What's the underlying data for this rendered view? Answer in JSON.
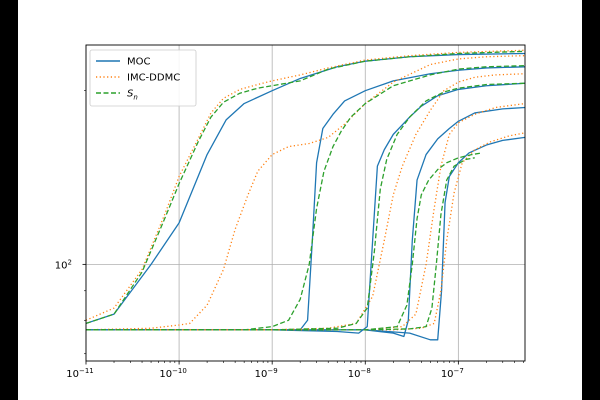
{
  "chart_data": {
    "type": "line",
    "xscale": "log",
    "yscale": "log",
    "xlim": [
      1e-11,
      5.2e-07
    ],
    "ylim": [
      68,
      240
    ],
    "grid": true,
    "legend_location": "upper-left",
    "x_ticks": [
      {
        "value": 1e-11,
        "label": "10",
        "exp": "−11"
      },
      {
        "value": 1e-10,
        "label": "10",
        "exp": "−10"
      },
      {
        "value": 1e-09,
        "label": "10",
        "exp": "−9"
      },
      {
        "value": 1e-08,
        "label": "10",
        "exp": "−8"
      },
      {
        "value": 1e-07,
        "label": "10",
        "exp": "−7"
      }
    ],
    "y_ticks": [
      {
        "value": 100,
        "label": "10",
        "exp": "2"
      }
    ],
    "legend": [
      {
        "key": "moc",
        "label": "MOC",
        "color": "#1f77b4",
        "dash": ""
      },
      {
        "key": "imc",
        "label": "IMC-DDMC",
        "color": "#ff7f0e",
        "dash": "1.2,2.5"
      },
      {
        "key": "sn",
        "label": "S",
        "sub": "n",
        "color": "#2ca02c",
        "dash": "5,2.5"
      }
    ],
    "series": [
      {
        "name": "MOC",
        "style": "moc",
        "points": [
          [
            1e-11,
            79
          ],
          [
            2e-11,
            82
          ],
          [
            5e-11,
            100
          ],
          [
            1e-10,
            118
          ],
          [
            2e-10,
            155
          ],
          [
            3.2e-10,
            178
          ],
          [
            5e-10,
            190
          ],
          [
            1e-09,
            200
          ],
          [
            2e-09,
            210
          ],
          [
            5e-09,
            220
          ],
          [
            1e-08,
            225
          ],
          [
            3e-08,
            229
          ],
          [
            1e-07,
            231
          ],
          [
            5.2e-07,
            232
          ]
        ]
      },
      {
        "name": "MOC",
        "style": "moc",
        "points": [
          [
            1e-11,
            77
          ],
          [
            1e-10,
            77
          ],
          [
            1e-09,
            77
          ],
          [
            2e-09,
            77
          ],
          [
            2.4e-09,
            80
          ],
          [
            2.7e-09,
            110
          ],
          [
            3e-09,
            150
          ],
          [
            3.5e-09,
            172
          ],
          [
            4.5e-09,
            182
          ],
          [
            6e-09,
            192
          ],
          [
            1e-08,
            200
          ],
          [
            2e-08,
            208
          ],
          [
            5e-08,
            214
          ],
          [
            1e-07,
            217
          ],
          [
            2e-07,
            219
          ],
          [
            5.2e-07,
            220
          ]
        ]
      },
      {
        "name": "MOC",
        "style": "moc",
        "points": [
          [
            1e-11,
            77
          ],
          [
            1e-09,
            77
          ],
          [
            5e-09,
            76.5
          ],
          [
            8.5e-09,
            76
          ],
          [
            1.05e-08,
            78
          ],
          [
            1.2e-08,
            110
          ],
          [
            1.35e-08,
            148
          ],
          [
            1.6e-08,
            158
          ],
          [
            2e-08,
            168
          ],
          [
            3e-08,
            180
          ],
          [
            4e-08,
            188
          ],
          [
            6e-08,
            196
          ],
          [
            1e-07,
            201
          ],
          [
            2e-07,
            204
          ],
          [
            5.2e-07,
            206
          ]
        ]
      },
      {
        "name": "MOC",
        "style": "moc",
        "points": [
          [
            1e-11,
            77
          ],
          [
            1e-09,
            77
          ],
          [
            1e-08,
            77
          ],
          [
            2e-08,
            76
          ],
          [
            2.6e-08,
            75
          ],
          [
            2.9e-08,
            80
          ],
          [
            3.2e-08,
            110
          ],
          [
            3.6e-08,
            140
          ],
          [
            4.5e-08,
            155
          ],
          [
            6e-08,
            165
          ],
          [
            8e-08,
            172
          ],
          [
            1e-07,
            177
          ],
          [
            1.5e-07,
            183
          ],
          [
            3e-07,
            186
          ],
          [
            5.2e-07,
            187
          ]
        ]
      },
      {
        "name": "MOC",
        "style": "moc",
        "points": [
          [
            1e-11,
            77
          ],
          [
            1e-09,
            77
          ],
          [
            1e-08,
            77
          ],
          [
            3e-08,
            76
          ],
          [
            5e-08,
            74
          ],
          [
            6e-08,
            74
          ],
          [
            6.6e-08,
            90
          ],
          [
            7.2e-08,
            128
          ],
          [
            8e-08,
            142
          ],
          [
            1e-07,
            150
          ],
          [
            1.3e-07,
            156
          ],
          [
            2e-07,
            161
          ],
          [
            3e-07,
            164
          ],
          [
            5.2e-07,
            166
          ]
        ]
      },
      {
        "name": "IMC-DDMC",
        "style": "imc",
        "points": [
          [
            1e-11,
            80
          ],
          [
            2e-11,
            84
          ],
          [
            4e-11,
            98
          ],
          [
            7e-11,
            122
          ],
          [
            1e-10,
            142
          ],
          [
            1.6e-10,
            165
          ],
          [
            2.2e-10,
            183
          ],
          [
            3e-10,
            194
          ],
          [
            4.5e-10,
            201
          ],
          [
            7e-10,
            205
          ],
          [
            1e-09,
            208
          ],
          [
            2e-09,
            213
          ],
          [
            4e-09,
            219
          ],
          [
            1e-08,
            226
          ],
          [
            3e-08,
            230
          ],
          [
            1e-07,
            233
          ],
          [
            5.2e-07,
            235
          ]
        ]
      },
      {
        "name": "IMC-DDMC",
        "style": "imc",
        "points": [
          [
            1e-11,
            77
          ],
          [
            5e-11,
            77.5
          ],
          [
            1e-10,
            78.5
          ],
          [
            1.3e-10,
            79
          ],
          [
            2e-10,
            85
          ],
          [
            3e-10,
            98
          ],
          [
            4e-10,
            115
          ],
          [
            5.5e-10,
            132
          ],
          [
            7e-10,
            145
          ],
          [
            1e-09,
            155
          ],
          [
            1.5e-09,
            160
          ],
          [
            2.5e-09,
            162
          ],
          [
            4e-09,
            166
          ],
          [
            6e-09,
            175
          ],
          [
            1e-08,
            190
          ],
          [
            2e-08,
            207
          ],
          [
            5e-08,
            222
          ],
          [
            1e-07,
            227
          ],
          [
            2e-07,
            229
          ],
          [
            5.2e-07,
            230
          ]
        ]
      },
      {
        "name": "IMC-DDMC",
        "style": "imc",
        "points": [
          [
            1e-11,
            77
          ],
          [
            1e-09,
            77
          ],
          [
            4e-09,
            77.5
          ],
          [
            8e-09,
            79
          ],
          [
            1.2e-08,
            88
          ],
          [
            1.6e-08,
            110
          ],
          [
            2e-08,
            132
          ],
          [
            2.5e-08,
            148
          ],
          [
            3.5e-08,
            168
          ],
          [
            5e-08,
            185
          ],
          [
            7e-08,
            200
          ],
          [
            1e-07,
            207
          ],
          [
            1.5e-07,
            211
          ],
          [
            2.5e-07,
            213
          ],
          [
            5.2e-07,
            214
          ]
        ]
      },
      {
        "name": "IMC-DDMC",
        "style": "imc",
        "points": [
          [
            1e-11,
            77
          ],
          [
            1e-08,
            77
          ],
          [
            2.5e-08,
            78
          ],
          [
            3.5e-08,
            82
          ],
          [
            4.5e-08,
            100
          ],
          [
            5.5e-08,
            125
          ],
          [
            6.5e-08,
            148
          ],
          [
            8e-08,
            168
          ],
          [
            1e-07,
            176
          ],
          [
            1.5e-07,
            182
          ],
          [
            2.5e-07,
            187
          ],
          [
            5.2e-07,
            190
          ]
        ]
      },
      {
        "name": "IMC-DDMC",
        "style": "imc",
        "points": [
          [
            1e-11,
            77
          ],
          [
            2e-08,
            77
          ],
          [
            4e-08,
            77.5
          ],
          [
            5.5e-08,
            79
          ],
          [
            6.5e-08,
            90
          ],
          [
            7.5e-08,
            110
          ],
          [
            9e-08,
            133
          ],
          [
            1.1e-07,
            150
          ],
          [
            1.5e-07,
            158
          ],
          [
            2.2e-07,
            163
          ],
          [
            3.5e-07,
            167
          ],
          [
            5.2e-07,
            169
          ]
        ]
      },
      {
        "name": "Sn",
        "style": "sn",
        "points": [
          [
            1e-11,
            79
          ],
          [
            2e-11,
            82
          ],
          [
            4e-11,
            97
          ],
          [
            7e-11,
            120
          ],
          [
            1e-10,
            138
          ],
          [
            1.6e-10,
            163
          ],
          [
            2.2e-10,
            180
          ],
          [
            3e-10,
            191
          ],
          [
            4.5e-10,
            198
          ],
          [
            7e-10,
            202
          ],
          [
            1e-09,
            204
          ],
          [
            2e-09,
            208
          ],
          [
            4e-09,
            218
          ],
          [
            1e-08,
            225
          ],
          [
            3e-08,
            229
          ],
          [
            1e-07,
            232
          ],
          [
            5.2e-07,
            234
          ]
        ]
      },
      {
        "name": "Sn",
        "style": "sn",
        "points": [
          [
            1e-11,
            77
          ],
          [
            5e-10,
            77
          ],
          [
            1e-09,
            78
          ],
          [
            1.5e-09,
            80
          ],
          [
            2e-09,
            87
          ],
          [
            2.5e-09,
            100
          ],
          [
            3e-09,
            125
          ],
          [
            3.6e-09,
            145
          ],
          [
            4.5e-09,
            160
          ],
          [
            5.5e-09,
            170
          ],
          [
            7e-09,
            180
          ],
          [
            1e-08,
            190
          ],
          [
            2e-08,
            204
          ],
          [
            5e-08,
            213
          ],
          [
            1e-07,
            218
          ],
          [
            2e-07,
            220
          ],
          [
            5.2e-07,
            221
          ]
        ]
      },
      {
        "name": "Sn",
        "style": "sn",
        "points": [
          [
            1e-11,
            77
          ],
          [
            1e-09,
            77
          ],
          [
            5e-09,
            77.5
          ],
          [
            8e-09,
            79
          ],
          [
            1.05e-08,
            84
          ],
          [
            1.25e-08,
            105
          ],
          [
            1.45e-08,
            135
          ],
          [
            1.7e-08,
            152
          ],
          [
            2.2e-08,
            168
          ],
          [
            3e-08,
            180
          ],
          [
            4.5e-08,
            192
          ],
          [
            7e-08,
            199
          ],
          [
            1e-07,
            202
          ],
          [
            2e-07,
            205
          ],
          [
            5.2e-07,
            206
          ]
        ]
      },
      {
        "name": "Sn",
        "style": "sn",
        "points": [
          [
            1e-11,
            77
          ],
          [
            1e-08,
            77
          ],
          [
            2.2e-08,
            78
          ],
          [
            2.8e-08,
            85
          ],
          [
            3.2e-08,
            100
          ],
          [
            3.6e-08,
            120
          ],
          [
            4e-08,
            132
          ],
          [
            4.8e-08,
            140
          ],
          [
            6e-08,
            146
          ],
          [
            7.5e-08,
            150
          ],
          [
            1e-07,
            153
          ],
          [
            1.4e-07,
            155
          ],
          [
            1.8e-07,
            156
          ]
        ]
      },
      {
        "name": "Sn",
        "style": "sn",
        "points": [
          [
            1e-11,
            77
          ],
          [
            1e-08,
            77
          ],
          [
            3e-08,
            77.3
          ],
          [
            4.5e-08,
            78
          ],
          [
            5.2e-08,
            84
          ],
          [
            5.8e-08,
            100
          ],
          [
            6.5e-08,
            122
          ],
          [
            7.5e-08,
            140
          ],
          [
            9e-08,
            148
          ],
          [
            1.2e-07,
            152
          ],
          [
            1.5e-07,
            153
          ]
        ]
      }
    ]
  }
}
